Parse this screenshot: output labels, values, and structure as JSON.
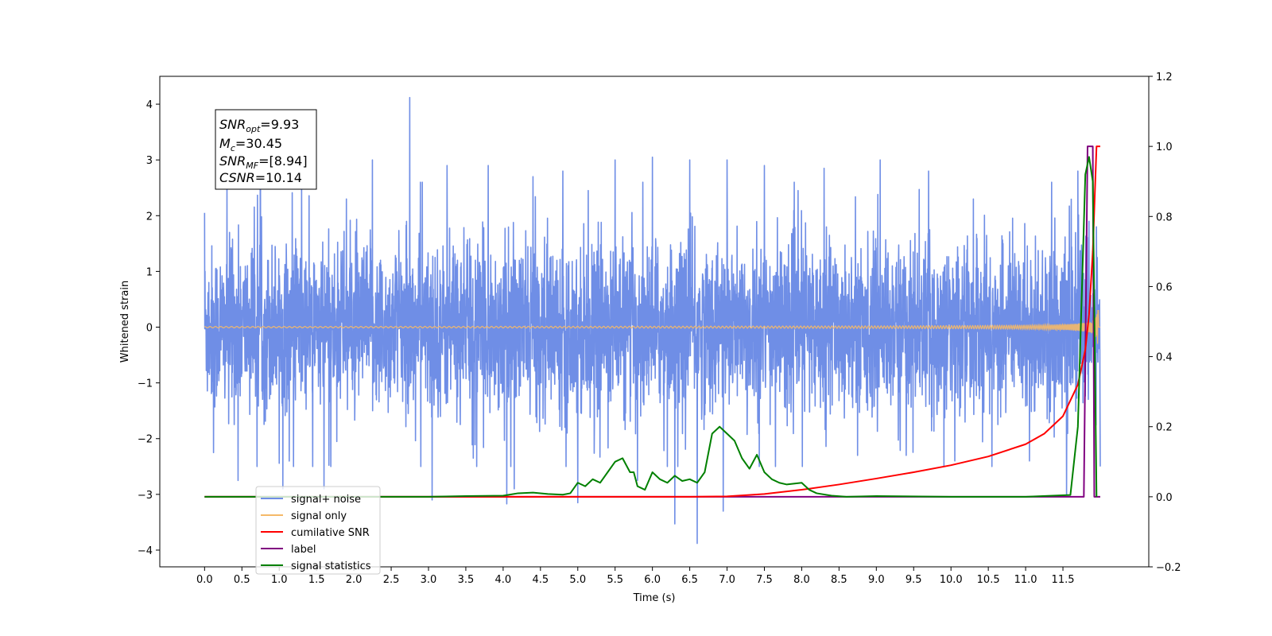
{
  "chart_data": {
    "type": "line",
    "xlabel": "Time (s)",
    "ylabel_left": "Whitened strain",
    "ylabel_right": "",
    "x_ticks": [
      0.0,
      0.5,
      1.0,
      1.5,
      2.0,
      2.5,
      3.0,
      3.5,
      4.0,
      4.5,
      5.0,
      5.5,
      6.0,
      6.5,
      7.0,
      7.5,
      8.0,
      8.5,
      9.0,
      9.5,
      10.0,
      10.5,
      11.0,
      11.5
    ],
    "x_tick_labels": [
      "0.0",
      "0.5",
      "1.0",
      "1.5",
      "2.0",
      "2.5",
      "3.0",
      "3.5",
      "4.0",
      "4.5",
      "5.0",
      "5.5",
      "6.0",
      "6.5",
      "7.0",
      "7.5",
      "8.0",
      "8.5",
      "9.0",
      "9.5",
      "10.0",
      "10.5",
      "11.0",
      "11.5"
    ],
    "xlim": [
      -0.6,
      12.65
    ],
    "y_left_ticks": [
      -4,
      -3,
      -2,
      -1,
      0,
      1,
      2,
      3,
      4
    ],
    "y_left_tick_labels": [
      "−4",
      "−3",
      "−2",
      "−1",
      "0",
      "1",
      "2",
      "3",
      "4"
    ],
    "ylim_left": [
      -4.3,
      4.5
    ],
    "y_right_ticks": [
      -0.2,
      0.0,
      0.2,
      0.4,
      0.6,
      0.8,
      1.0,
      1.2
    ],
    "y_right_tick_labels": [
      "−0.2",
      "0.0",
      "0.2",
      "0.4",
      "0.6",
      "0.8",
      "1.0",
      "1.2"
    ],
    "ylim_right": [
      -0.2,
      1.2
    ],
    "legend_placement": "lower-left",
    "annotation_box": {
      "lines": [
        {
          "sym": "SNR",
          "sub": "opt",
          "value": "=9.93"
        },
        {
          "sym": "M",
          "sub": "c",
          "value": "=30.45"
        },
        {
          "sym": "SNR",
          "sub": "MF",
          "value": "=[8.94]"
        },
        {
          "sym": "CSNR",
          "sub": "",
          "value": "=10.14"
        }
      ]
    },
    "series": [
      {
        "name": "signal+ noise",
        "axis": "left",
        "color": "#6f8ee6",
        "description_values": {
          "t_start": 0.0,
          "t_end": 12.0,
          "typical_range": [
            -1.6,
            1.8
          ],
          "peak_max": 4.12,
          "peak_min": -3.88
        },
        "spikes": [
          [
            0.0,
            2.05
          ],
          [
            0.12,
            -2.25
          ],
          [
            0.3,
            2.6
          ],
          [
            0.45,
            -2.75
          ],
          [
            0.75,
            3.0
          ],
          [
            1.05,
            -2.9
          ],
          [
            1.3,
            2.5
          ],
          [
            1.45,
            -2.5
          ],
          [
            1.6,
            -2.9
          ],
          [
            1.9,
            2.3
          ],
          [
            2.25,
            3.0
          ],
          [
            2.75,
            4.12
          ],
          [
            3.05,
            -3.1
          ],
          [
            3.25,
            2.9
          ],
          [
            3.6,
            -2.35
          ],
          [
            3.8,
            2.9
          ],
          [
            4.05,
            -3.17
          ],
          [
            4.15,
            -2.9
          ],
          [
            4.4,
            2.7
          ],
          [
            4.8,
            2.8
          ],
          [
            5.0,
            -3.15
          ],
          [
            5.5,
            3.0
          ],
          [
            5.8,
            -2.75
          ],
          [
            6.0,
            3.05
          ],
          [
            6.2,
            -2.5
          ],
          [
            6.3,
            -3.53
          ],
          [
            6.5,
            3.0
          ],
          [
            6.6,
            -3.88
          ],
          [
            6.95,
            -3.3
          ],
          [
            7.0,
            3.0
          ],
          [
            7.5,
            2.9
          ],
          [
            7.65,
            -2.5
          ],
          [
            7.95,
            2.45
          ],
          [
            8.3,
            2.85
          ],
          [
            8.75,
            -2.3
          ],
          [
            9.05,
            3.0
          ],
          [
            9.4,
            -2.3
          ],
          [
            9.7,
            2.8
          ],
          [
            10.05,
            -2.4
          ],
          [
            10.3,
            2.3
          ],
          [
            10.55,
            -2.5
          ],
          [
            11.05,
            -2.4
          ],
          [
            11.35,
            2.6
          ],
          [
            11.55,
            -3.0
          ],
          [
            11.7,
            2.8
          ],
          [
            11.85,
            1.9
          ],
          [
            11.95,
            1.8
          ]
        ]
      },
      {
        "name": "signal only",
        "axis": "left",
        "color": "#f5b968",
        "description_values": {
          "type": "chirp",
          "t_start": 0.0,
          "t_merger": 11.95,
          "amplitude_end": 1.25
        }
      },
      {
        "name": "cumilative SNR",
        "axis": "right",
        "color": "#ff0000",
        "x": [
          0.0,
          6.5,
          7.0,
          7.5,
          8.0,
          8.5,
          9.0,
          9.5,
          10.0,
          10.5,
          11.0,
          11.25,
          11.5,
          11.7,
          11.8,
          11.85,
          11.9,
          11.95,
          12.0
        ],
        "values": [
          0.0,
          0.0,
          0.001,
          0.008,
          0.02,
          0.035,
          0.052,
          0.07,
          0.09,
          0.115,
          0.15,
          0.18,
          0.23,
          0.32,
          0.42,
          0.52,
          0.7,
          1.0,
          1.0
        ]
      },
      {
        "name": "label",
        "axis": "right",
        "color": "#800080",
        "x": [
          0.0,
          11.78,
          11.83,
          11.9,
          11.92,
          12.0
        ],
        "values": [
          0.0,
          0.0,
          1.0,
          1.0,
          0.0,
          0.0
        ]
      },
      {
        "name": "signal statistics",
        "axis": "right",
        "color": "#008000",
        "x": [
          0.0,
          3.0,
          3.5,
          4.0,
          4.2,
          4.4,
          4.6,
          4.8,
          4.9,
          5.0,
          5.1,
          5.2,
          5.3,
          5.4,
          5.5,
          5.6,
          5.7,
          5.75,
          5.8,
          5.9,
          6.0,
          6.1,
          6.2,
          6.3,
          6.4,
          6.5,
          6.6,
          6.7,
          6.8,
          6.9,
          7.0,
          7.1,
          7.2,
          7.3,
          7.4,
          7.5,
          7.6,
          7.7,
          7.8,
          8.0,
          8.1,
          8.2,
          8.4,
          8.6,
          9.0,
          10.0,
          11.0,
          11.6,
          11.7,
          11.8,
          11.85,
          11.9,
          11.95
        ],
        "values": [
          0.0,
          0.0,
          0.002,
          0.003,
          0.01,
          0.012,
          0.008,
          0.006,
          0.01,
          0.04,
          0.03,
          0.05,
          0.04,
          0.07,
          0.1,
          0.11,
          0.07,
          0.07,
          0.03,
          0.02,
          0.07,
          0.05,
          0.04,
          0.06,
          0.045,
          0.05,
          0.04,
          0.07,
          0.18,
          0.2,
          0.18,
          0.16,
          0.11,
          0.08,
          0.12,
          0.07,
          0.05,
          0.04,
          0.035,
          0.04,
          0.02,
          0.01,
          0.003,
          0.0,
          0.002,
          0.0,
          0.0,
          0.005,
          0.2,
          0.92,
          0.97,
          0.9,
          0.0
        ]
      }
    ]
  }
}
